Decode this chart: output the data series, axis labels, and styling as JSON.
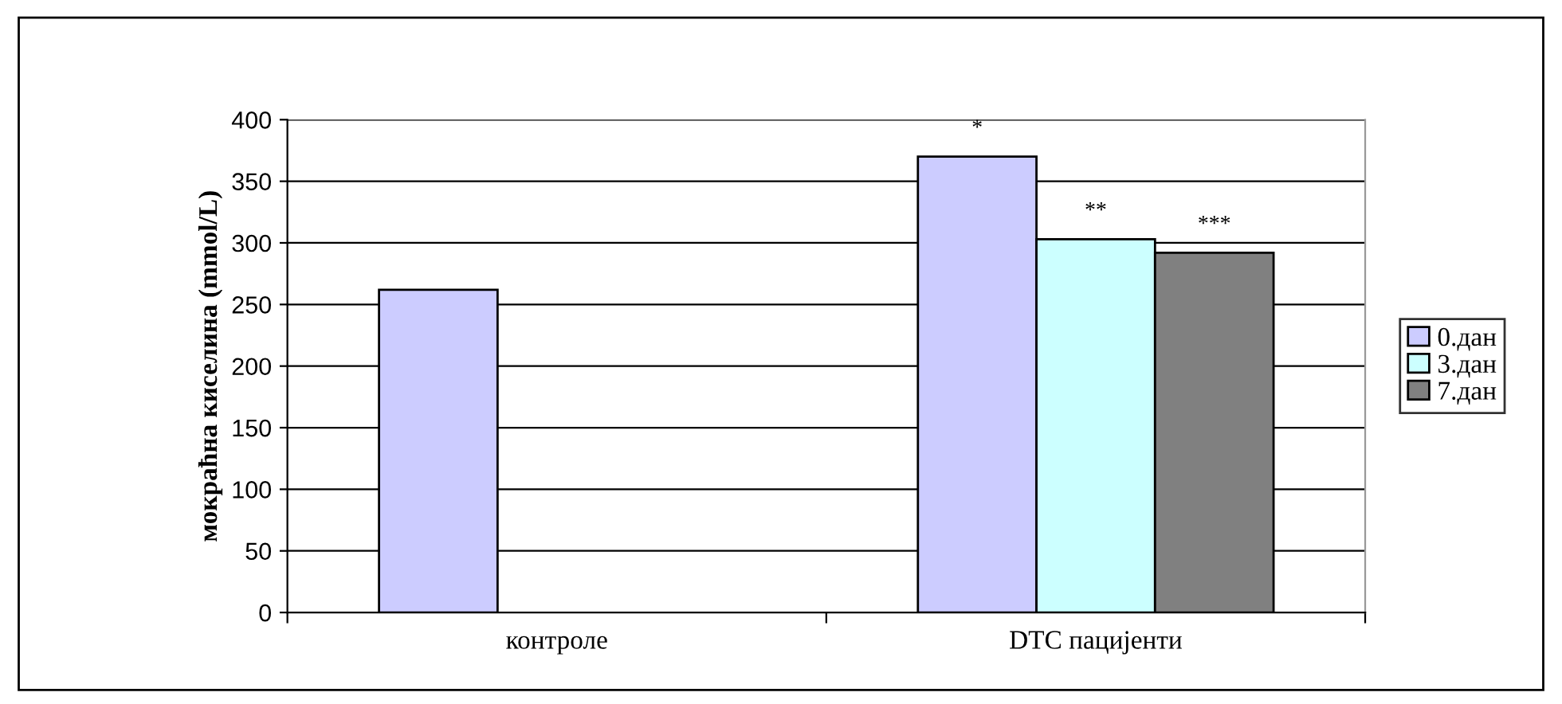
{
  "chart_data": {
    "type": "bar",
    "ylabel": "мокраћна киселина (mmol/L)",
    "categories": [
      "контроле",
      "DTC пацијенти"
    ],
    "series": [
      {
        "name": "0.дан",
        "color": "#ccccff",
        "values": [
          262,
          370
        ],
        "value_labels": [
          null,
          "*"
        ]
      },
      {
        "name": "3.дан",
        "color": "#ccffff",
        "values": [
          null,
          303
        ],
        "value_labels": [
          null,
          "**"
        ]
      },
      {
        "name": "7.дан",
        "color": "#808080",
        "values": [
          null,
          292
        ],
        "value_labels": [
          null,
          "***"
        ]
      }
    ],
    "ylim": [
      0,
      400
    ],
    "yticks": [
      0,
      50,
      100,
      150,
      200,
      250,
      300,
      350,
      400
    ],
    "grid": "y",
    "legend": "right"
  }
}
